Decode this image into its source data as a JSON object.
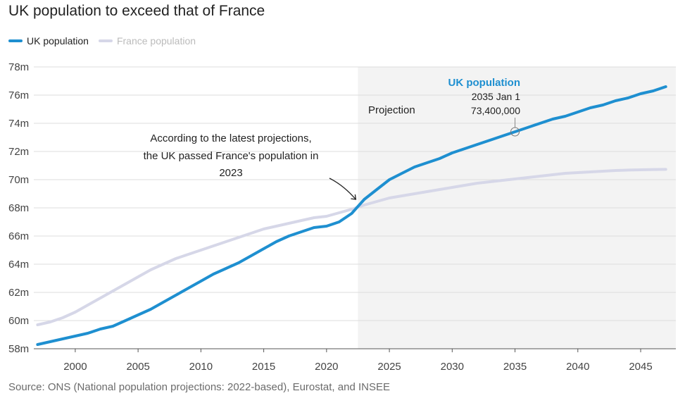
{
  "title": "UK population to exceed that of France",
  "source": "Source: ONS (National population projections: 2022-based), Eurostat, and INSEE",
  "colors": {
    "uk": "#1e8fd0",
    "france": "#d6d7e8",
    "projection_bg": "#f3f3f3",
    "grid": "#dddddd"
  },
  "legend": [
    {
      "label": "UK population",
      "color": "#1e8fd0",
      "text_color": "#222222"
    },
    {
      "label": "France population",
      "color": "#d6d7e8",
      "text_color": "#bbbbbb"
    }
  ],
  "chart_data": {
    "type": "line",
    "title": "UK population to exceed that of France",
    "xlim": [
      1996.7,
      2047.8
    ],
    "ylim": [
      58,
      78
    ],
    "x_ticks": [
      2000,
      2005,
      2010,
      2015,
      2020,
      2025,
      2030,
      2035,
      2040,
      2045
    ],
    "x_tick_labels": [
      "2000",
      "2005",
      "2010",
      "2015",
      "2020",
      "2025",
      "2030",
      "2035",
      "2040",
      "2045"
    ],
    "y_ticks": [
      58,
      60,
      62,
      64,
      66,
      68,
      70,
      72,
      74,
      76,
      78
    ],
    "y_tick_labels": [
      "58m",
      "60m",
      "62m",
      "64m",
      "66m",
      "68m",
      "70m",
      "72m",
      "74m",
      "76m",
      "78m"
    ],
    "grid": true,
    "legend_position": "top-left",
    "projection_start": 2022.5,
    "projection_label": "Projection",
    "series": [
      {
        "name": "UK population",
        "x": [
          1997,
          1998,
          1999,
          2000,
          2001,
          2002,
          2003,
          2004,
          2005,
          2006,
          2007,
          2008,
          2009,
          2010,
          2011,
          2012,
          2013,
          2014,
          2015,
          2016,
          2017,
          2018,
          2019,
          2020,
          2021,
          2022,
          2023,
          2024,
          2025,
          2026,
          2027,
          2028,
          2029,
          2030,
          2031,
          2032,
          2033,
          2034,
          2035,
          2036,
          2037,
          2038,
          2039,
          2040,
          2041,
          2042,
          2043,
          2044,
          2045,
          2046,
          2047
        ],
        "values": [
          58.3,
          58.5,
          58.7,
          58.9,
          59.1,
          59.4,
          59.6,
          60.0,
          60.4,
          60.8,
          61.3,
          61.8,
          62.3,
          62.8,
          63.3,
          63.7,
          64.1,
          64.6,
          65.1,
          65.6,
          66.0,
          66.3,
          66.6,
          66.7,
          67.0,
          67.6,
          68.6,
          69.3,
          70.0,
          70.45,
          70.9,
          71.2,
          71.5,
          71.9,
          72.2,
          72.5,
          72.8,
          73.1,
          73.4,
          73.7,
          74.0,
          74.3,
          74.5,
          74.8,
          75.1,
          75.3,
          75.6,
          75.8,
          76.1,
          76.3,
          76.6
        ]
      },
      {
        "name": "France population",
        "x": [
          1997,
          1998,
          1999,
          2000,
          2001,
          2002,
          2003,
          2004,
          2005,
          2006,
          2007,
          2008,
          2009,
          2010,
          2011,
          2012,
          2013,
          2014,
          2015,
          2016,
          2017,
          2018,
          2019,
          2020,
          2021,
          2022,
          2023,
          2024,
          2025,
          2026,
          2027,
          2028,
          2029,
          2030,
          2031,
          2032,
          2033,
          2034,
          2035,
          2036,
          2037,
          2038,
          2039,
          2040,
          2041,
          2042,
          2043,
          2044,
          2045,
          2046,
          2047
        ],
        "values": [
          59.7,
          59.9,
          60.2,
          60.6,
          61.1,
          61.6,
          62.1,
          62.6,
          63.1,
          63.6,
          64.0,
          64.4,
          64.7,
          65.0,
          65.3,
          65.6,
          65.9,
          66.2,
          66.5,
          66.7,
          66.9,
          67.1,
          67.3,
          67.4,
          67.65,
          67.9,
          68.2,
          68.45,
          68.7,
          68.85,
          69.0,
          69.15,
          69.3,
          69.45,
          69.6,
          69.75,
          69.85,
          69.95,
          70.05,
          70.15,
          70.25,
          70.35,
          70.45,
          70.5,
          70.55,
          70.6,
          70.65,
          70.68,
          70.7,
          70.72,
          70.73
        ]
      }
    ],
    "annotations": [
      {
        "lines": [
          "According to the latest projections,",
          "the UK passed France's population in",
          "2023"
        ],
        "x": 2023,
        "y": 68.2
      }
    ],
    "tooltip": {
      "series": "UK population",
      "title": "UK population",
      "date": "2035 Jan 1",
      "value_label": "73,400,000",
      "x": 2035,
      "y": 73.4
    }
  }
}
